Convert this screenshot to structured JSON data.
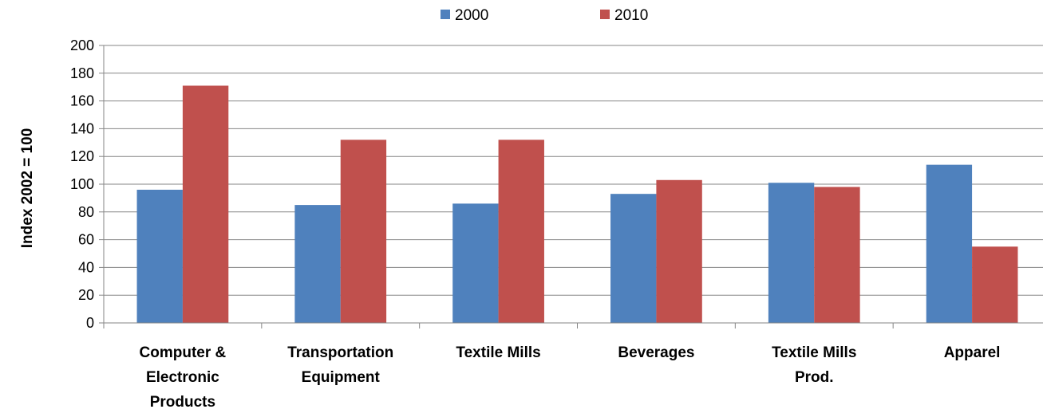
{
  "chart_data": {
    "type": "bar",
    "title": "",
    "xlabel": "",
    "ylabel": "Index 2002 = 100",
    "ylim": [
      0,
      200
    ],
    "yticks": [
      0,
      20,
      40,
      60,
      80,
      100,
      120,
      140,
      160,
      180,
      200
    ],
    "grid": true,
    "legend_position": "top",
    "categories": [
      [
        "Computer &",
        "Electronic",
        "Products"
      ],
      [
        "Transportation",
        "Equipment"
      ],
      [
        "Textile Mills"
      ],
      [
        "Beverages"
      ],
      [
        "Textile Mills",
        "Prod."
      ],
      [
        "Apparel"
      ]
    ],
    "series": [
      {
        "name": "2000",
        "color": "#4F81BD",
        "values": [
          96,
          85,
          86,
          93,
          101,
          114
        ]
      },
      {
        "name": "2010",
        "color": "#C0504D",
        "values": [
          171,
          132,
          132,
          103,
          98,
          55
        ]
      }
    ]
  }
}
